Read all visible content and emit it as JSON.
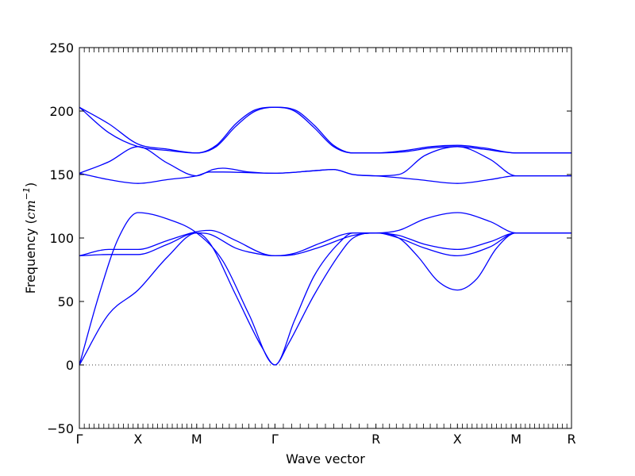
{
  "chart_data": {
    "type": "line",
    "xlabel": "Wave vector",
    "ylabel_text": "Frequency (",
    "ylabel_unit": "cm",
    "ylabel_exp": "−1",
    "ylabel_close": ")",
    "ylim": [
      -50,
      250
    ],
    "yticks": [
      -50,
      0,
      50,
      100,
      150,
      200,
      250
    ],
    "ytick_labels": [
      "−50",
      "0",
      "50",
      "100",
      "150",
      "200",
      "250"
    ],
    "xlim": [
      0,
      7.55
    ],
    "kpoints": [
      {
        "label": "Γ",
        "x": 0
      },
      {
        "label": "X",
        "x": 0.9
      },
      {
        "label": "M",
        "x": 1.8
      },
      {
        "label": "Γ",
        "x": 3.0
      },
      {
        "label": "R",
        "x": 4.55
      },
      {
        "label": "X",
        "x": 5.8
      },
      {
        "label": "M",
        "x": 6.7
      },
      {
        "label": "R",
        "x": 7.55
      }
    ],
    "zero_line": {
      "y": 0,
      "style": "dotted"
    },
    "line_color": "#0000ff",
    "series": [
      {
        "values": [
          [
            0,
            0
          ],
          [
            0.45,
            40
          ],
          [
            0.9,
            59
          ],
          [
            1.35,
            85
          ],
          [
            1.8,
            104
          ],
          [
            2.0,
            96
          ],
          [
            2.4,
            55
          ],
          [
            2.8,
            14
          ],
          [
            3.0,
            0
          ],
          [
            3.2,
            16
          ],
          [
            3.6,
            55
          ],
          [
            4.0,
            88
          ],
          [
            4.2,
            100
          ],
          [
            4.55,
            104
          ],
          [
            4.9,
            100
          ],
          [
            5.2,
            85
          ],
          [
            5.5,
            66
          ],
          [
            5.8,
            59
          ],
          [
            6.1,
            68
          ],
          [
            6.4,
            92
          ],
          [
            6.7,
            104
          ],
          [
            7.55,
            104
          ]
        ]
      },
      {
        "values": [
          [
            0,
            0
          ],
          [
            0.3,
            55
          ],
          [
            0.6,
            100
          ],
          [
            0.9,
            120
          ],
          [
            1.35,
            115
          ],
          [
            1.8,
            104
          ],
          [
            2.2,
            82
          ],
          [
            2.6,
            40
          ],
          [
            3.0,
            0
          ],
          [
            3.3,
            35
          ],
          [
            3.6,
            70
          ],
          [
            4.0,
            97
          ],
          [
            4.2,
            104
          ],
          [
            4.55,
            104
          ],
          [
            4.9,
            106
          ],
          [
            5.3,
            115
          ],
          [
            5.8,
            120
          ],
          [
            6.3,
            113
          ],
          [
            6.7,
            104
          ],
          [
            7.55,
            104
          ]
        ]
      },
      {
        "values": [
          [
            0,
            86
          ],
          [
            0.45,
            87
          ],
          [
            0.9,
            87
          ],
          [
            1.35,
            95
          ],
          [
            1.8,
            104
          ],
          [
            2.0,
            103
          ],
          [
            2.4,
            92
          ],
          [
            2.8,
            87
          ],
          [
            3.0,
            86
          ],
          [
            3.3,
            87
          ],
          [
            3.7,
            93
          ],
          [
            4.2,
            102
          ],
          [
            4.55,
            104
          ],
          [
            4.9,
            100
          ],
          [
            5.3,
            92
          ],
          [
            5.8,
            86
          ],
          [
            6.3,
            93
          ],
          [
            6.7,
            104
          ],
          [
            7.55,
            104
          ]
        ]
      },
      {
        "values": [
          [
            0,
            86
          ],
          [
            0.45,
            91
          ],
          [
            0.9,
            91
          ],
          [
            1.35,
            98
          ],
          [
            1.8,
            105
          ],
          [
            2.0,
            106
          ],
          [
            2.4,
            98
          ],
          [
            2.8,
            88
          ],
          [
            3.0,
            86
          ],
          [
            3.3,
            88
          ],
          [
            3.7,
            96
          ],
          [
            4.2,
            104
          ],
          [
            4.55,
            104
          ],
          [
            4.9,
            102
          ],
          [
            5.3,
            95
          ],
          [
            5.8,
            91
          ],
          [
            6.3,
            97
          ],
          [
            6.7,
            104
          ],
          [
            7.55,
            104
          ]
        ]
      },
      {
        "values": [
          [
            0,
            151
          ],
          [
            0.45,
            146
          ],
          [
            0.9,
            143
          ],
          [
            1.35,
            146
          ],
          [
            1.8,
            149
          ],
          [
            2.0,
            152
          ],
          [
            2.2,
            152
          ],
          [
            3.0,
            151
          ],
          [
            3.6,
            153
          ],
          [
            3.9,
            154
          ],
          [
            4.2,
            150
          ],
          [
            4.55,
            149
          ],
          [
            5.2,
            146
          ],
          [
            5.8,
            143
          ],
          [
            6.3,
            146
          ],
          [
            6.7,
            149
          ],
          [
            7.55,
            149
          ]
        ]
      },
      {
        "values": [
          [
            0,
            151
          ],
          [
            0.45,
            160
          ],
          [
            0.9,
            172
          ],
          [
            1.35,
            159
          ],
          [
            1.8,
            149
          ],
          [
            2.05,
            154
          ],
          [
            2.2,
            155
          ],
          [
            2.6,
            152
          ],
          [
            3.0,
            151
          ],
          [
            3.6,
            153
          ],
          [
            3.9,
            154
          ],
          [
            4.2,
            150
          ],
          [
            4.55,
            149
          ],
          [
            4.9,
            150
          ],
          [
            5.3,
            165
          ],
          [
            5.8,
            172
          ],
          [
            6.3,
            162
          ],
          [
            6.7,
            149
          ],
          [
            7.55,
            149
          ]
        ]
      },
      {
        "values": [
          [
            0,
            203
          ],
          [
            0.45,
            190
          ],
          [
            0.9,
            174
          ],
          [
            1.35,
            170
          ],
          [
            1.8,
            167
          ],
          [
            2.1,
            172
          ],
          [
            2.4,
            188
          ],
          [
            2.7,
            200
          ],
          [
            3.0,
            203
          ],
          [
            3.3,
            200
          ],
          [
            3.6,
            187
          ],
          [
            3.9,
            172
          ],
          [
            4.2,
            167
          ],
          [
            4.55,
            167
          ],
          [
            5.0,
            169
          ],
          [
            5.4,
            172
          ],
          [
            5.8,
            173
          ],
          [
            6.2,
            171
          ],
          [
            6.7,
            167
          ],
          [
            7.55,
            167
          ]
        ]
      },
      {
        "values": [
          [
            0,
            203
          ],
          [
            0.45,
            183
          ],
          [
            0.9,
            172
          ],
          [
            1.35,
            169
          ],
          [
            1.8,
            167
          ],
          [
            2.1,
            173
          ],
          [
            2.4,
            190
          ],
          [
            2.7,
            201
          ],
          [
            3.0,
            203
          ],
          [
            3.3,
            201
          ],
          [
            3.6,
            189
          ],
          [
            3.9,
            173
          ],
          [
            4.2,
            167
          ],
          [
            4.55,
            167
          ],
          [
            5.0,
            168
          ],
          [
            5.4,
            171
          ],
          [
            5.8,
            172
          ],
          [
            6.2,
            170
          ],
          [
            6.7,
            167
          ],
          [
            7.55,
            167
          ]
        ]
      }
    ]
  }
}
